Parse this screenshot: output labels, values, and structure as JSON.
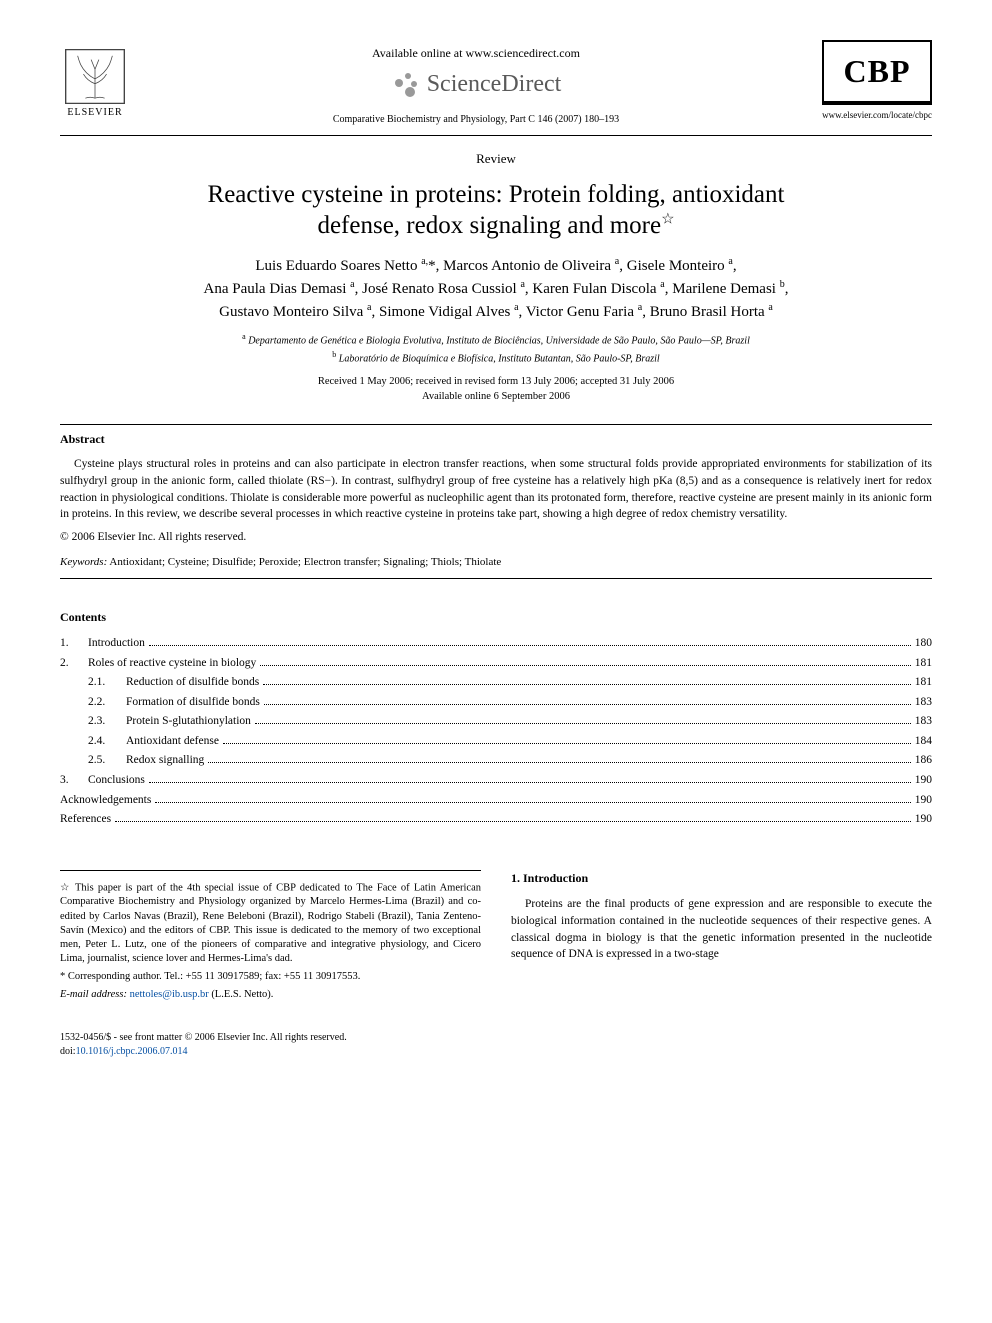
{
  "header": {
    "elsevier_label": "ELSEVIER",
    "available_online": "Available online at www.sciencedirect.com",
    "sciencedirect": "ScienceDirect",
    "journal_ref": "Comparative Biochemistry and Physiology, Part C 146 (2007) 180–193",
    "cbp_label": "CBP",
    "cbp_url": "www.elsevier.com/locate/cbpc"
  },
  "article": {
    "type": "Review",
    "title_line1": "Reactive cysteine in proteins: Protein folding, antioxidant",
    "title_line2": "defense, redox signaling and more",
    "star": "☆",
    "authors": "Luis Eduardo Soares Netto a,*, Marcos Antonio de Oliveira a, Gisele Monteiro a, Ana Paula Dias Demasi a, José Renato Rosa Cussiol a, Karen Fulan Discola a, Marilene Demasi b, Gustavo Monteiro Silva a, Simone Vidigal Alves a, Victor Genu Faria a, Bruno Brasil Horta a",
    "affil_a": "a Departamento de Genética e Biologia Evolutiva, Instituto de Biociências, Universidade de São Paulo, São Paulo—SP, Brazil",
    "affil_b": "b Laboratório de Bioquímica e Biofísica, Instituto Butantan, São Paulo-SP, Brazil",
    "dates_line1": "Received 1 May 2006; received in revised form 13 July 2006; accepted 31 July 2006",
    "dates_line2": "Available online 6 September 2006"
  },
  "abstract": {
    "heading": "Abstract",
    "text": "Cysteine plays structural roles in proteins and can also participate in electron transfer reactions, when some structural folds provide appropriated environments for stabilization of its sulfhydryl group in the anionic form, called thiolate (RS−). In contrast, sulfhydryl group of free cysteine has a relatively high pKa (8,5) and as a consequence is relatively inert for redox reaction in physiological conditions. Thiolate is considerable more powerful as nucleophilic agent than its protonated form, therefore, reactive cysteine are present mainly in its anionic form in proteins. In this review, we describe several processes in which reactive cysteine in proteins take part, showing a high degree of redox chemistry versatility.",
    "copyright": "© 2006 Elsevier Inc. All rights reserved.",
    "keywords_label": "Keywords:",
    "keywords": " Antioxidant; Cysteine; Disulfide; Peroxide; Electron transfer; Signaling; Thiols; Thiolate"
  },
  "contents": {
    "heading": "Contents",
    "items": [
      {
        "num": "1.",
        "label": "Introduction",
        "page": "180"
      },
      {
        "num": "2.",
        "label": "Roles of reactive cysteine in biology",
        "page": "181"
      },
      {
        "num": "2.1.",
        "label": "Reduction of disulfide bonds",
        "page": "181",
        "sub": true
      },
      {
        "num": "2.2.",
        "label": "Formation of disulfide bonds",
        "page": "183",
        "sub": true
      },
      {
        "num": "2.3.",
        "label": "Protein S-glutathionylation",
        "page": "183",
        "sub": true
      },
      {
        "num": "2.4.",
        "label": "Antioxidant defense",
        "page": "184",
        "sub": true
      },
      {
        "num": "2.5.",
        "label": "Redox signalling",
        "page": "186",
        "sub": true
      },
      {
        "num": "3.",
        "label": "Conclusions",
        "page": "190"
      },
      {
        "num": "",
        "label": "Acknowledgements",
        "page": "190"
      },
      {
        "num": "",
        "label": "References",
        "page": "190"
      }
    ]
  },
  "footnotes": {
    "note_star": "☆ This paper is part of the 4th special issue of CBP dedicated to The Face of Latin American Comparative Biochemistry and Physiology organized by Marcelo Hermes-Lima (Brazil) and co-edited by Carlos Navas (Brazil), Rene Beleboni (Brazil), Rodrigo Stabeli (Brazil), Tania Zenteno-Savín (Mexico) and the editors of CBP. This issue is dedicated to the memory of two exceptional men, Peter L. Lutz, one of the pioneers of comparative and integrative physiology, and Cicero Lima, journalist, science lover and Hermes-Lima's dad.",
    "corr": "* Corresponding author. Tel.: +55 11 30917589; fax: +55 11 30917553.",
    "email_label": "E-mail address: ",
    "email": "nettoles@ib.usp.br",
    "email_suffix": " (L.E.S. Netto)."
  },
  "intro": {
    "heading": "1. Introduction",
    "text": "Proteins are the final products of gene expression and are responsible to execute the biological information contained in the nucleotide sequences of their respective genes. A classical dogma in biology is that the genetic information presented in the nucleotide sequence of DNA is expressed in a two-stage"
  },
  "bottom": {
    "issn": "1532-0456/$ - see front matter © 2006 Elsevier Inc. All rights reserved.",
    "doi_label": "doi:",
    "doi": "10.1016/j.cbpc.2006.07.014"
  },
  "colors": {
    "link": "#0650a3",
    "text": "#000000",
    "bg": "#ffffff"
  }
}
